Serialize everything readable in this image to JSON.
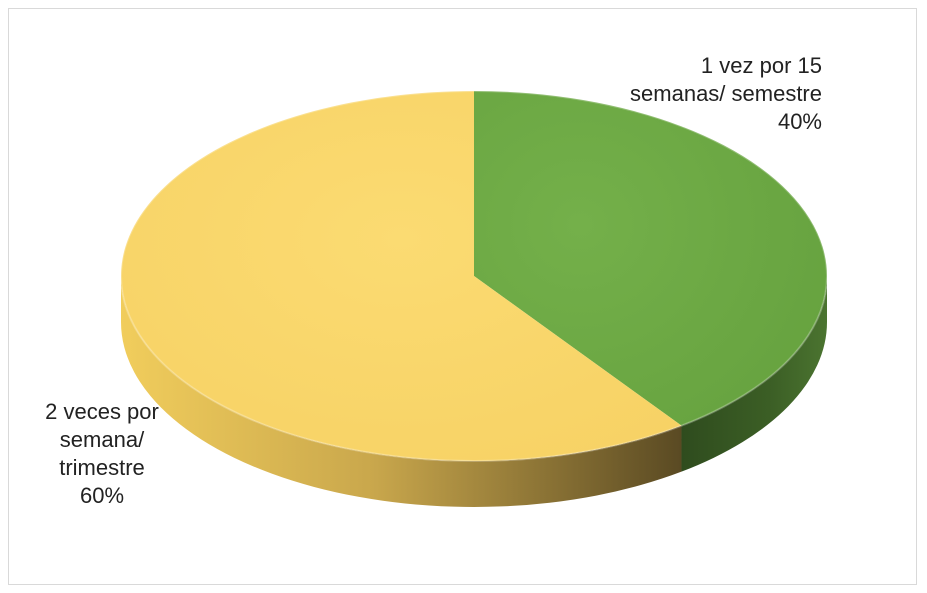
{
  "chart_data": {
    "type": "pie",
    "style": "3d",
    "start_angle_deg": 90,
    "direction": "clockwise",
    "title": "",
    "legend": "none",
    "slices": [
      {
        "label_lines": [
          "1 vez por 15",
          "semanas/ semestre"
        ],
        "value": 40,
        "percent_label": "40%",
        "color": "#70AD47",
        "side_color_light": "#5f9338",
        "side_color_dark": "#263f18"
      },
      {
        "label_lines": [
          "2 veces por",
          "semana/",
          "trimestre"
        ],
        "value": 60,
        "percent_label": "60%",
        "color": "#F9D66A",
        "side_color_light": "#e6c253",
        "side_color_dark": "#5a4a23"
      }
    ]
  }
}
